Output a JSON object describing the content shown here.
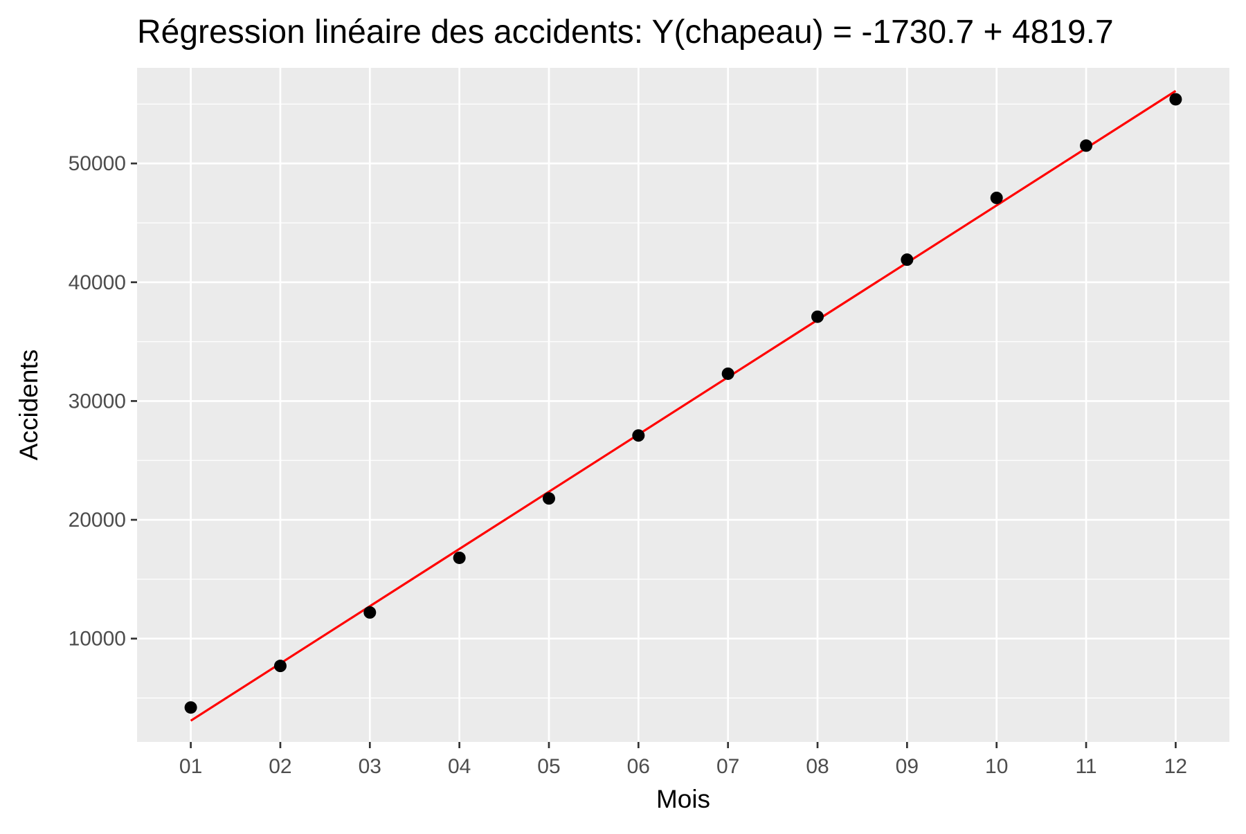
{
  "chart_data": {
    "type": "scatter",
    "title": "Régression linéaire des accidents: Y(chapeau) = -1730.7 + 4819.7",
    "xlabel": "Mois",
    "ylabel": "Accidents",
    "categories": [
      "01",
      "02",
      "03",
      "04",
      "05",
      "06",
      "07",
      "08",
      "09",
      "10",
      "11",
      "12"
    ],
    "x": [
      1,
      2,
      3,
      4,
      5,
      6,
      7,
      8,
      9,
      10,
      11,
      12
    ],
    "y": [
      4200,
      7700,
      12200,
      16800,
      21800,
      27100,
      32300,
      37100,
      41900,
      47100,
      51500,
      55400
    ],
    "regression": {
      "intercept": -1730.7,
      "slope": 4819.7,
      "color": "#ff0000"
    },
    "y_ticks": [
      10000,
      20000,
      30000,
      40000,
      50000
    ],
    "xlim": [
      0.4,
      12.6
    ],
    "ylim": [
      1300,
      58050
    ],
    "grid": true,
    "legend": "none",
    "colors": {
      "panel_background": "#ebebeb",
      "grid": "#ffffff",
      "points": "#000000",
      "line": "#ff0000"
    }
  }
}
